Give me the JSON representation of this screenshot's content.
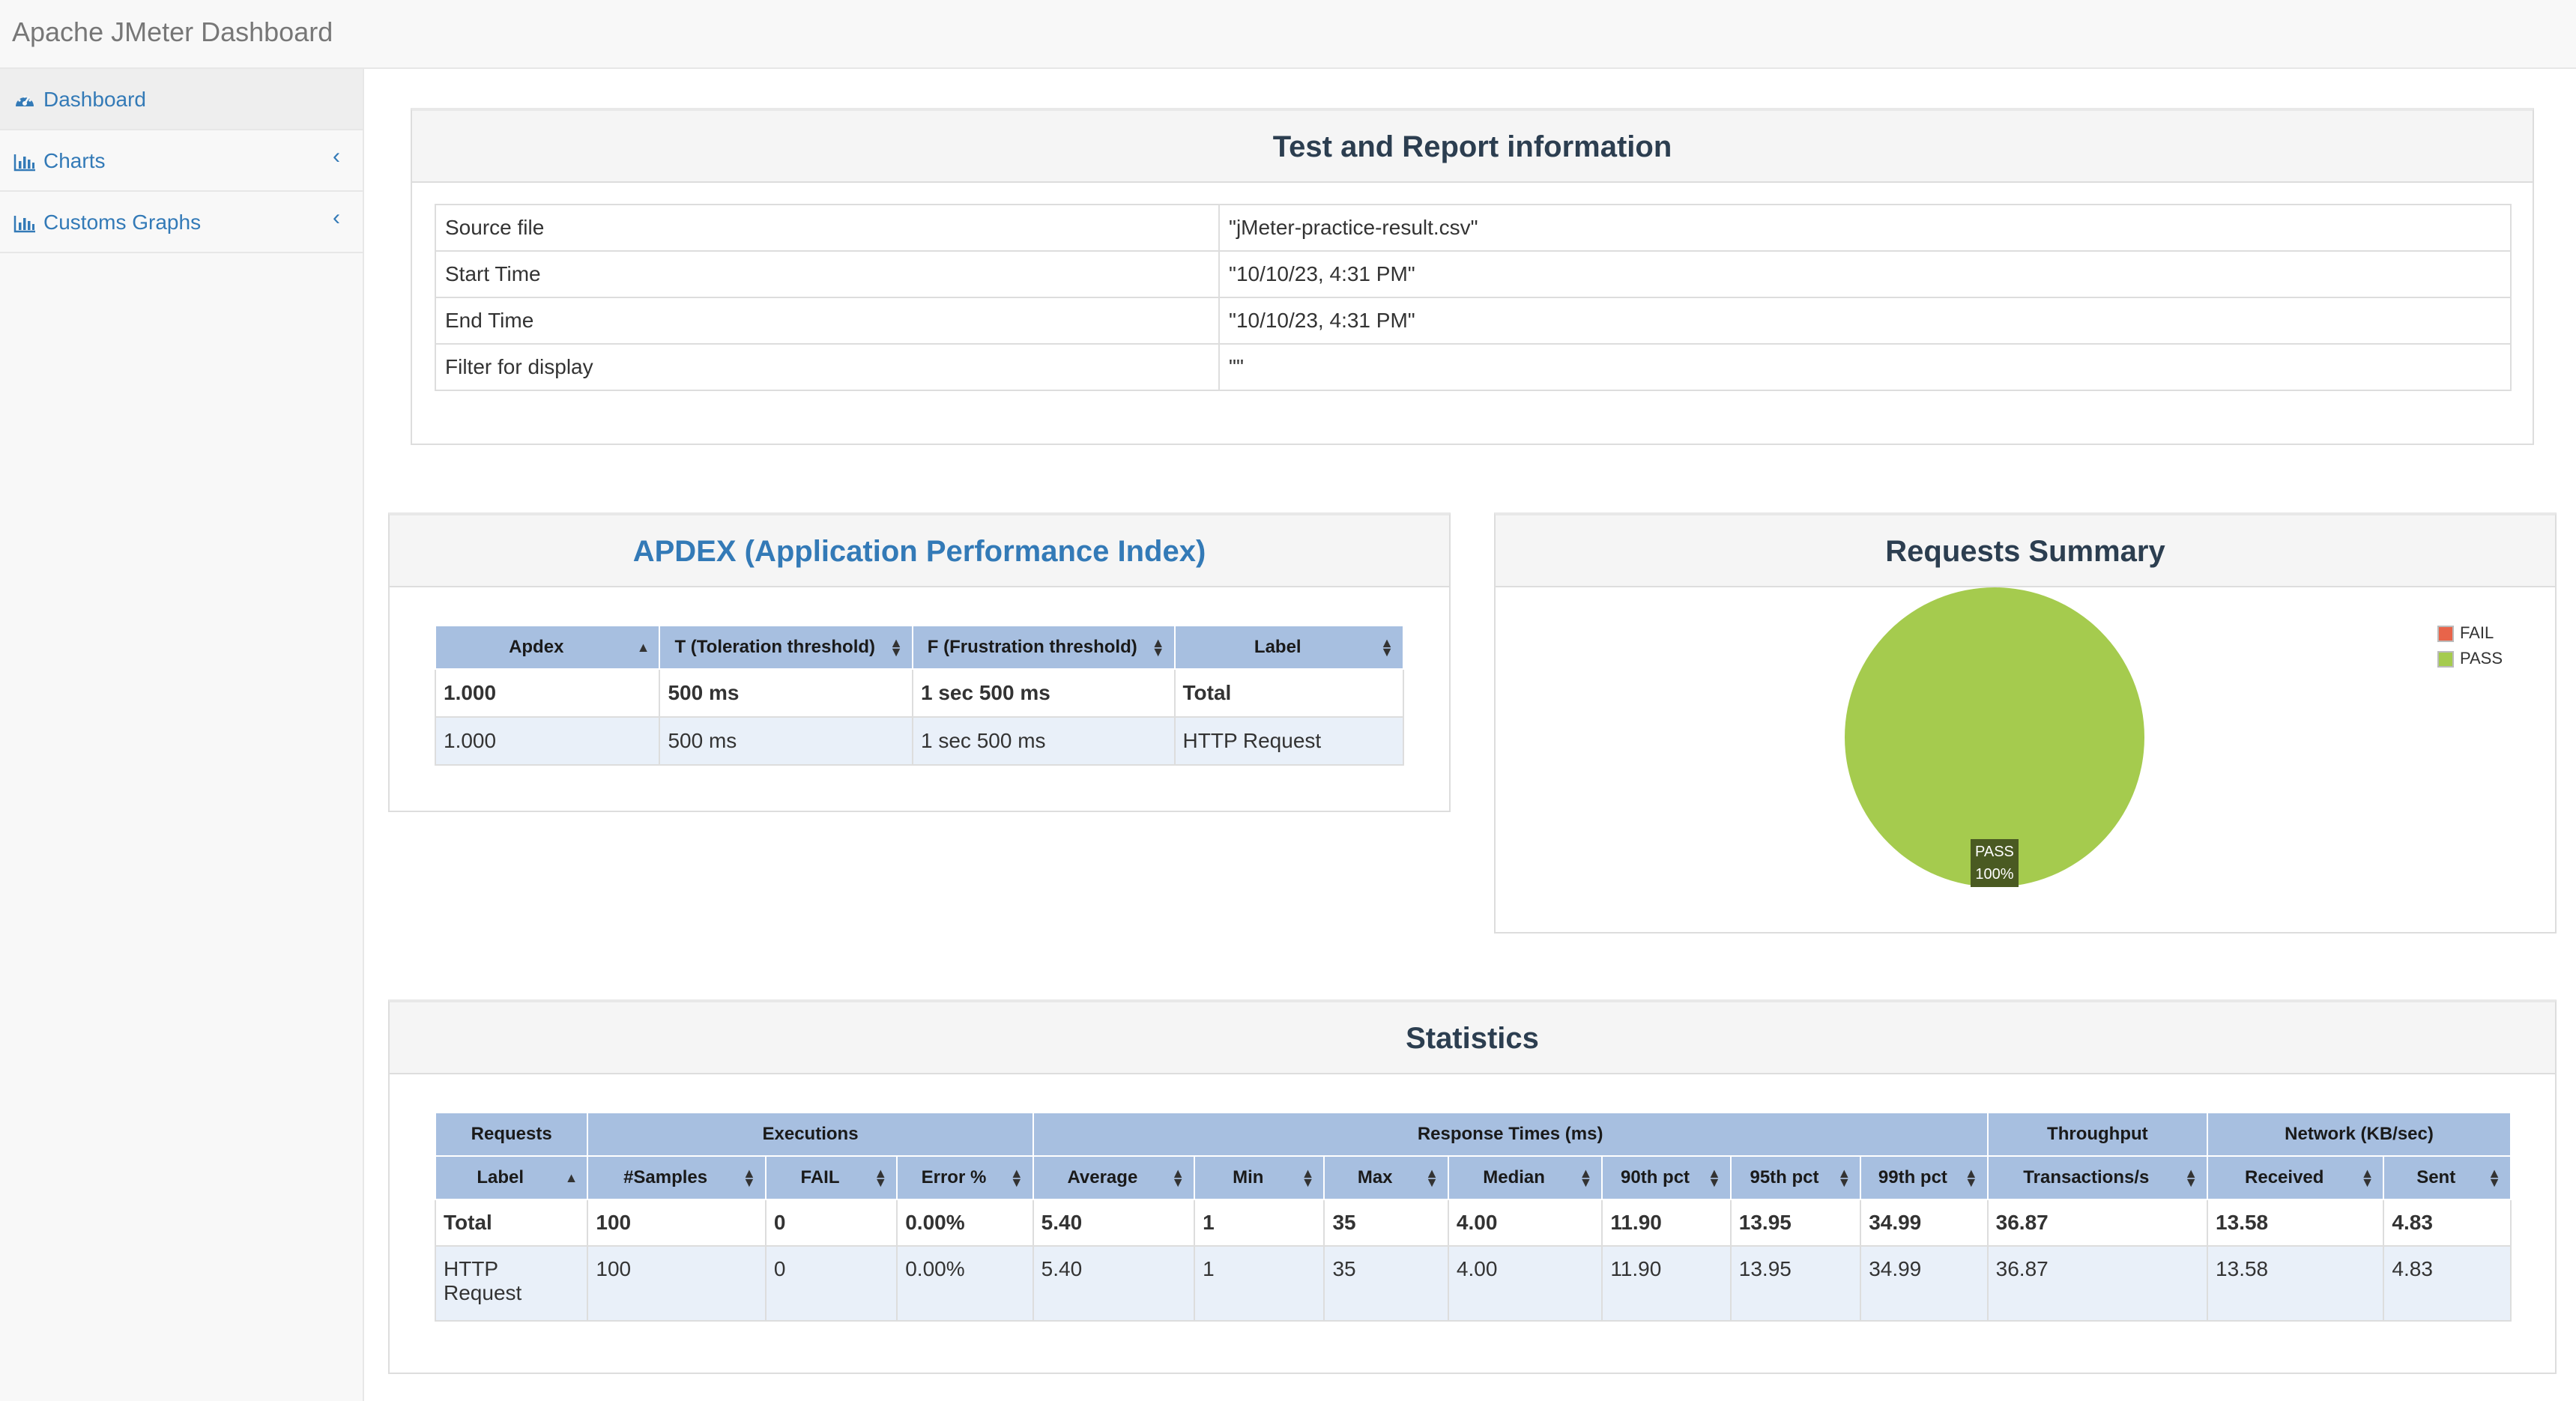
{
  "app": {
    "title": "Apache JMeter Dashboard"
  },
  "sidebar": {
    "items": [
      {
        "label": "Dashboard",
        "icon": "dashboard-icon"
      },
      {
        "label": "Charts",
        "icon": "bar-chart-icon",
        "chevron": "‹"
      },
      {
        "label": "Customs Graphs",
        "icon": "bar-chart-icon",
        "chevron": "‹"
      }
    ]
  },
  "report_info": {
    "title": "Test and Report information",
    "rows": [
      {
        "key": "Source file",
        "value": "\"jMeter-practice-result.csv\""
      },
      {
        "key": "Start Time",
        "value": "\"10/10/23, 4:31 PM\""
      },
      {
        "key": "End Time",
        "value": "\"10/10/23, 4:31 PM\""
      },
      {
        "key": "Filter for display",
        "value": "\"\""
      }
    ]
  },
  "apdex": {
    "title": "APDEX (Application Performance Index)",
    "headers": [
      "Apdex",
      "T (Toleration threshold)",
      "F (Frustration threshold)",
      "Label"
    ],
    "rows": [
      [
        "1.000",
        "500 ms",
        "1 sec 500 ms",
        "Total"
      ],
      [
        "1.000",
        "500 ms",
        "1 sec 500 ms",
        "HTTP Request"
      ]
    ]
  },
  "requests_summary": {
    "title": "Requests Summary",
    "legend": [
      {
        "label": "FAIL",
        "color": "#e8644a"
      },
      {
        "label": "PASS",
        "color": "#a5cb4e"
      }
    ],
    "slice_label": "PASS",
    "slice_percent": "100%"
  },
  "chart_data": {
    "type": "pie",
    "categories": [
      "FAIL",
      "PASS"
    ],
    "values": [
      0,
      100
    ],
    "colors": [
      "#e8644a",
      "#a5cb4e"
    ],
    "title": "Requests Summary"
  },
  "statistics": {
    "title": "Statistics",
    "groups": [
      "Requests",
      "Executions",
      "Response Times (ms)",
      "Throughput",
      "Network (KB/sec)"
    ],
    "headers": [
      "Label",
      "#Samples",
      "FAIL",
      "Error %",
      "Average",
      "Min",
      "Max",
      "Median",
      "90th pct",
      "95th pct",
      "99th pct",
      "Transactions/s",
      "Received",
      "Sent"
    ],
    "total_row": [
      "Total",
      "100",
      "0",
      "0.00%",
      "5.40",
      "1",
      "35",
      "4.00",
      "11.90",
      "13.95",
      "34.99",
      "36.87",
      "13.58",
      "4.83"
    ],
    "rows": [
      {
        "label_line1": "HTTP",
        "label_line2": "Request",
        "values": [
          "100",
          "0",
          "0.00%",
          "5.40",
          "1",
          "35",
          "4.00",
          "11.90",
          "13.95",
          "34.99",
          "36.87",
          "13.58",
          "4.83"
        ]
      }
    ]
  }
}
